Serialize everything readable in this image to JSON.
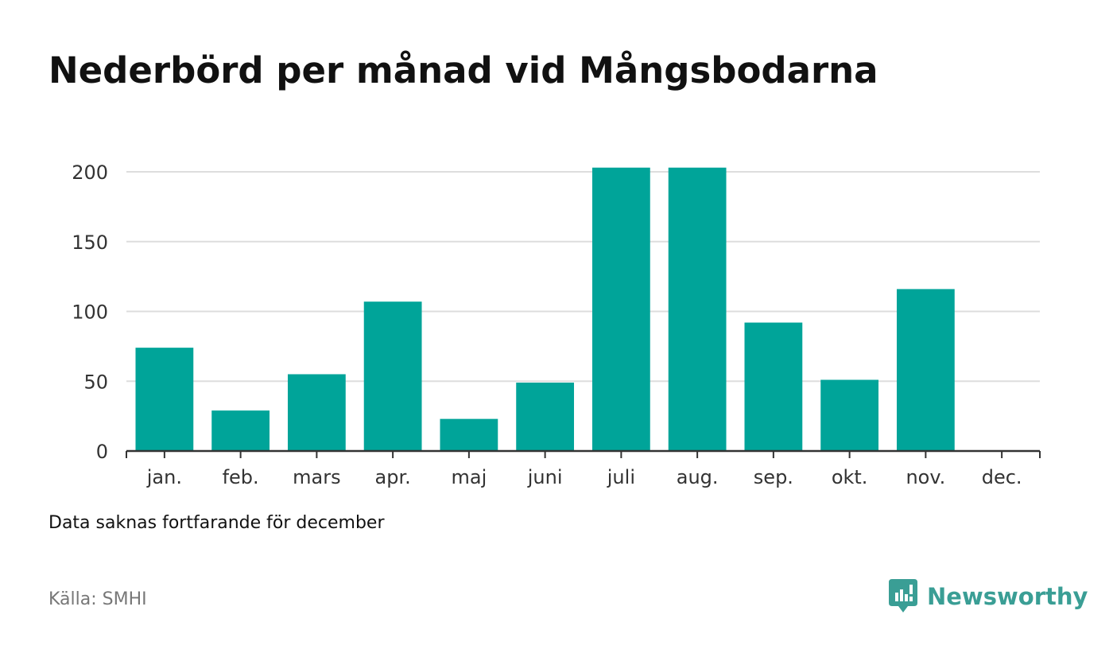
{
  "title": "Nederbörd per månad vid Mångsbodarna",
  "note": "Data saknas fortfarande för december",
  "source": "Källa: SMHI",
  "brand": {
    "name": "Newsworthy",
    "icon": "chart-speech-bubble-icon",
    "color": "#3a9e95"
  },
  "colors": {
    "bar": "#00a499",
    "grid": "#dddddd",
    "axis": "#333333",
    "text": "#333333"
  },
  "chart_data": {
    "type": "bar",
    "categories": [
      "jan.",
      "feb.",
      "mars",
      "apr.",
      "maj",
      "juni",
      "juli",
      "aug.",
      "sep.",
      "okt.",
      "nov.",
      "dec."
    ],
    "values": [
      74,
      29,
      55,
      107,
      23,
      49,
      203,
      203,
      92,
      51,
      116,
      null
    ],
    "title": "Nederbörd per månad vid Mångsbodarna",
    "xlabel": "",
    "ylabel": "",
    "ylim": [
      0,
      200
    ],
    "yticks": [
      0,
      50,
      100,
      150,
      200
    ],
    "grid": true,
    "legend": "none"
  }
}
